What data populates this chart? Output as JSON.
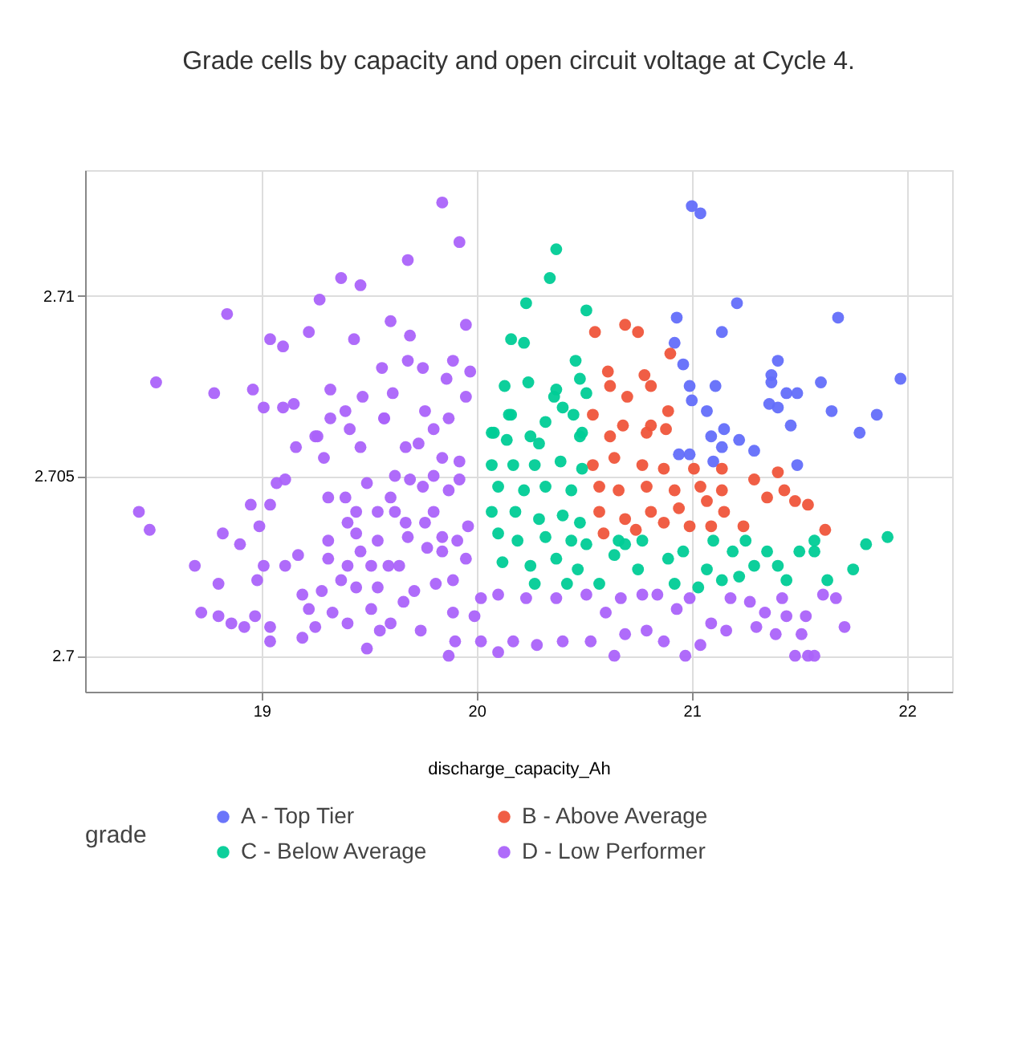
{
  "chart_data": {
    "type": "scatter",
    "title": "Grade cells by capacity and open circuit voltage at Cycle 4.",
    "xlabel": "discharge_capacity_Ah",
    "legend_title": "grade",
    "xlim": [
      18.18,
      22.21
    ],
    "ylim": [
      2.699,
      2.7135
    ],
    "xticks": [
      19,
      20,
      21,
      22
    ],
    "yticks": [
      2.7,
      2.705,
      2.71
    ],
    "grid": true,
    "legend": "bottom",
    "marker": "circle",
    "series": [
      {
        "name": "A - Top Tier",
        "color": "#636efa",
        "x": [
          21.0,
          21.04,
          21.21,
          21.68,
          20.93,
          21.14,
          20.92,
          20.96,
          21.4,
          21.37,
          21.37,
          20.99,
          21.0,
          21.11,
          21.44,
          21.49,
          21.6,
          21.97,
          21.36,
          21.4,
          21.07,
          21.65,
          21.86,
          21.46,
          21.78,
          21.15,
          21.22,
          21.09,
          21.29,
          20.99,
          20.94,
          21.14,
          21.1,
          21.49
        ],
        "values": [
          2.7125,
          2.7123,
          2.7098,
          2.7094,
          2.7094,
          2.709,
          2.7087,
          2.7081,
          2.7082,
          2.7078,
          2.7076,
          2.7075,
          2.7071,
          2.7075,
          2.7073,
          2.7073,
          2.7076,
          2.7077,
          2.707,
          2.7069,
          2.7068,
          2.7068,
          2.7067,
          2.7064,
          2.7062,
          2.7063,
          2.706,
          2.7061,
          2.7057,
          2.7056,
          2.7056,
          2.7058,
          2.7054,
          2.7053
        ]
      },
      {
        "name": "B - Above Average",
        "color": "#ef553b",
        "x": [
          20.55,
          20.69,
          20.75,
          20.9,
          20.61,
          20.62,
          20.78,
          20.81,
          20.7,
          20.89,
          20.54,
          20.68,
          20.81,
          20.62,
          20.79,
          20.88,
          20.54,
          20.64,
          20.77,
          20.87,
          21.01,
          21.14,
          20.57,
          20.66,
          20.79,
          20.92,
          21.04,
          21.14,
          21.29,
          21.4,
          21.35,
          21.43,
          21.48,
          21.54,
          20.57,
          20.69,
          20.81,
          20.94,
          21.07,
          21.15,
          20.59,
          20.74,
          20.87,
          20.99,
          21.09,
          21.24,
          21.62
        ],
        "values": [
          2.709,
          2.7092,
          2.709,
          2.7084,
          2.7079,
          2.7075,
          2.7078,
          2.7075,
          2.7072,
          2.7068,
          2.7067,
          2.7064,
          2.7064,
          2.7061,
          2.7062,
          2.7063,
          2.7053,
          2.7055,
          2.7053,
          2.7052,
          2.7052,
          2.7052,
          2.7047,
          2.7046,
          2.7047,
          2.7046,
          2.7047,
          2.7046,
          2.7049,
          2.7051,
          2.7044,
          2.7046,
          2.7043,
          2.7042,
          2.704,
          2.7038,
          2.704,
          2.7041,
          2.7043,
          2.704,
          2.7034,
          2.7035,
          2.7037,
          2.7036,
          2.7036,
          2.7036,
          2.7035
        ]
      },
      {
        "name": "C - Below Average",
        "color": "#00cc96",
        "x": [
          20.16,
          20.13,
          20.16,
          20.07,
          20.37,
          20.34,
          20.23,
          20.51,
          20.22,
          20.46,
          20.24,
          20.48,
          20.37,
          20.51,
          20.36,
          20.4,
          20.45,
          20.15,
          20.32,
          20.08,
          20.25,
          20.49,
          20.14,
          20.29,
          20.48,
          20.07,
          20.17,
          20.27,
          20.39,
          20.49,
          20.1,
          20.22,
          20.32,
          20.44,
          20.07,
          20.18,
          20.29,
          20.4,
          20.48,
          20.1,
          20.19,
          20.32,
          20.44,
          20.51,
          20.12,
          20.25,
          20.37,
          20.47,
          20.27,
          20.42,
          20.57,
          20.66,
          20.64,
          20.69,
          20.77,
          20.75,
          20.89,
          20.96,
          20.92,
          21.03,
          21.07,
          21.1,
          21.19,
          21.25,
          21.29,
          21.22,
          21.35,
          21.4,
          21.44,
          21.5,
          21.57,
          21.57,
          21.63,
          21.75,
          21.81,
          21.91,
          21.14
        ],
        "values": [
          2.7088,
          2.7075,
          2.7067,
          2.7062,
          2.7113,
          2.7105,
          2.7098,
          2.7096,
          2.7087,
          2.7082,
          2.7076,
          2.7077,
          2.7074,
          2.7073,
          2.7072,
          2.7069,
          2.7067,
          2.7067,
          2.7065,
          2.7062,
          2.7061,
          2.7062,
          2.706,
          2.7059,
          2.7061,
          2.7053,
          2.7053,
          2.7053,
          2.7054,
          2.7052,
          2.7047,
          2.7046,
          2.7047,
          2.7046,
          2.704,
          2.704,
          2.7038,
          2.7039,
          2.7037,
          2.7034,
          2.7032,
          2.7033,
          2.7032,
          2.7031,
          2.7026,
          2.7025,
          2.7027,
          2.7024,
          2.702,
          2.702,
          2.702,
          2.7032,
          2.7028,
          2.7031,
          2.7032,
          2.7024,
          2.7027,
          2.7029,
          2.702,
          2.7019,
          2.7024,
          2.7032,
          2.7029,
          2.7032,
          2.7025,
          2.7022,
          2.7029,
          2.7025,
          2.7021,
          2.7029,
          2.7029,
          2.7032,
          2.7021,
          2.7024,
          2.7031,
          2.7033,
          2.7021
        ]
      },
      {
        "name": "D - Low Performer",
        "color": "#ab63fa",
        "x": [
          18.43,
          18.48,
          18.51,
          18.84,
          18.78,
          18.96,
          19.01,
          19.1,
          19.15,
          19.04,
          19.1,
          19.22,
          19.27,
          19.37,
          19.46,
          19.68,
          19.84,
          19.92,
          19.6,
          19.69,
          19.95,
          19.43,
          19.56,
          19.68,
          19.75,
          19.89,
          19.97,
          19.86,
          19.32,
          19.47,
          19.61,
          19.76,
          19.87,
          19.95,
          19.32,
          19.39,
          19.57,
          19.25,
          19.41,
          19.8,
          19.16,
          19.26,
          19.29,
          19.46,
          19.07,
          19.11,
          18.95,
          19.04,
          18.82,
          18.9,
          18.99,
          18.69,
          18.8,
          18.98,
          19.11,
          19.17,
          19.01,
          18.72,
          18.8,
          18.86,
          18.92,
          18.97,
          19.04,
          19.04,
          19.19,
          19.25,
          19.49,
          19.19,
          19.22,
          19.28,
          19.33,
          19.4,
          19.55,
          19.6,
          19.66,
          19.74,
          19.51,
          19.31,
          19.31,
          19.37,
          19.44,
          19.54,
          19.4,
          19.46,
          19.51,
          19.59,
          19.64,
          19.71,
          19.81,
          19.89,
          19.89,
          19.9,
          19.87,
          19.99,
          20.02,
          19.31,
          19.39,
          19.44,
          19.4,
          19.44,
          19.54,
          19.54,
          19.6,
          19.62,
          19.67,
          19.68,
          19.76,
          19.8,
          19.84,
          19.77,
          19.84,
          19.91,
          19.95,
          19.96,
          19.49,
          19.62,
          19.69,
          19.75,
          19.8,
          19.87,
          19.92,
          19.92,
          19.84,
          19.73,
          19.67,
          19.57,
          20.1,
          20.1,
          20.23,
          20.17,
          20.28,
          20.37,
          20.4,
          20.51,
          20.53,
          20.64,
          20.6,
          20.67,
          20.69,
          20.77,
          20.79,
          20.84,
          20.87,
          20.93,
          20.97,
          20.99,
          21.04,
          21.09,
          21.18,
          21.16,
          21.27,
          21.3,
          21.34,
          21.39,
          21.42,
          21.44,
          21.53,
          21.51,
          21.48,
          21.57,
          21.61,
          21.67,
          21.71,
          21.54,
          20.02
        ],
        "values": [
          2.704,
          2.7035,
          2.7076,
          2.7095,
          2.7073,
          2.7074,
          2.7069,
          2.7069,
          2.707,
          2.7088,
          2.7086,
          2.709,
          2.7099,
          2.7105,
          2.7103,
          2.711,
          2.7126,
          2.7115,
          2.7093,
          2.7089,
          2.7092,
          2.7088,
          2.708,
          2.7082,
          2.708,
          2.7082,
          2.7079,
          2.7077,
          2.7074,
          2.7072,
          2.7073,
          2.7068,
          2.7066,
          2.7072,
          2.7066,
          2.7068,
          2.7066,
          2.7061,
          2.7063,
          2.7063,
          2.7058,
          2.7061,
          2.7055,
          2.7058,
          2.7048,
          2.7049,
          2.7042,
          2.7042,
          2.7034,
          2.7031,
          2.7036,
          2.7025,
          2.702,
          2.7021,
          2.7025,
          2.7028,
          2.7025,
          2.7012,
          2.7011,
          2.7009,
          2.7008,
          2.7011,
          2.7008,
          2.7004,
          2.7005,
          2.7008,
          2.7002,
          2.7017,
          2.7013,
          2.7018,
          2.7012,
          2.7009,
          2.7007,
          2.7009,
          2.7015,
          2.7007,
          2.7013,
          2.7032,
          2.7027,
          2.7021,
          2.7019,
          2.7019,
          2.7025,
          2.7029,
          2.7025,
          2.7025,
          2.7025,
          2.7018,
          2.702,
          2.7021,
          2.7012,
          2.7004,
          2.7,
          2.7011,
          2.7004,
          2.7044,
          2.7044,
          2.704,
          2.7037,
          2.7034,
          2.7032,
          2.704,
          2.7044,
          2.704,
          2.7037,
          2.7033,
          2.7037,
          2.704,
          2.7033,
          2.703,
          2.7029,
          2.7032,
          2.7027,
          2.7036,
          2.7048,
          2.705,
          2.7049,
          2.7047,
          2.705,
          2.7046,
          2.7049,
          2.7054,
          2.7055,
          2.7059,
          2.7058,
          2.7066,
          2.7017,
          2.7001,
          2.7016,
          2.7004,
          2.7003,
          2.7016,
          2.7004,
          2.7017,
          2.7004,
          2.7,
          2.7012,
          2.7016,
          2.7006,
          2.7017,
          2.7007,
          2.7017,
          2.7004,
          2.7013,
          2.7,
          2.7016,
          2.7003,
          2.7009,
          2.7016,
          2.7007,
          2.7015,
          2.7008,
          2.7012,
          2.7006,
          2.7016,
          2.7011,
          2.7011,
          2.7006,
          2.7,
          2.7,
          2.7017,
          2.7016,
          2.7008,
          2.7,
          2.7016
        ]
      }
    ]
  }
}
